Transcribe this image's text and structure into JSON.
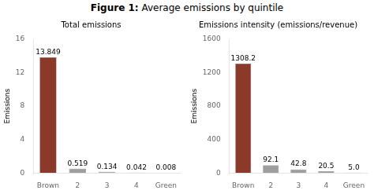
{
  "title": "Figure 1: Average emissions by quintile",
  "chart_data": [
    {
      "type": "bar",
      "title": "Total emissions",
      "categories": [
        "Brown",
        "2",
        "3",
        "4",
        "Green"
      ],
      "values": [
        13.849,
        0.519,
        0.134,
        0.042,
        0.008
      ],
      "colors": [
        "#8B3A2A",
        "#9E9E9E",
        "#9E9E9E",
        "#9E9E9E",
        "#6B8E6B"
      ],
      "ylabel": "Emissions",
      "ylim": [
        0,
        16
      ],
      "yticks": [
        0,
        4,
        8,
        12,
        16
      ],
      "grid": false,
      "data_labels": true
    },
    {
      "type": "bar",
      "title": "Emissions intensity (emissions/revenue)",
      "categories": [
        "Brown",
        "2",
        "3",
        "4",
        "Green"
      ],
      "values": [
        1308.2,
        92.1,
        42.8,
        20.5,
        5.0
      ],
      "value_labels": [
        "1308.2",
        "92.1",
        "42.8",
        "20.5",
        "5.0"
      ],
      "colors": [
        "#8B3A2A",
        "#9E9E9E",
        "#9E9E9E",
        "#9E9E9E",
        "#6B8E6B"
      ],
      "ylabel": "Emissions",
      "ylim": [
        0,
        1600
      ],
      "yticks": [
        0,
        400,
        800,
        1200,
        1600
      ],
      "grid": false,
      "data_labels": true
    }
  ]
}
